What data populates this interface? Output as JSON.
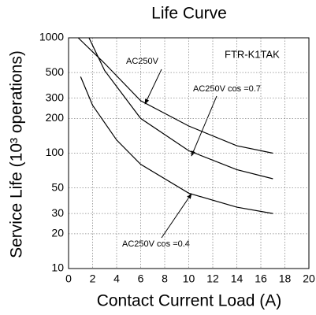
{
  "chart_data": {
    "type": "line",
    "title": "Life Curve",
    "xlabel": "Contact Current Load (A)",
    "ylabel": "Service Life (10³ operations)",
    "annotations": [
      "FTR-K1TAK"
    ],
    "series": [
      {
        "name": "AC250V",
        "color": "#000000",
        "x": [
          0.8,
          3,
          6,
          10,
          14,
          17
        ],
        "values": [
          1000,
          600,
          285,
          172,
          116,
          100
        ]
      },
      {
        "name": "AC250V cos =0.7",
        "color": "#000000",
        "x": [
          1.7,
          3,
          6,
          10,
          14,
          17
        ],
        "values": [
          1000,
          520,
          200,
          105,
          72,
          60
        ]
      },
      {
        "name": "AC250V cos =0.4",
        "color": "#000000",
        "x": [
          1,
          2,
          4,
          6,
          10,
          14,
          17
        ],
        "values": [
          460,
          260,
          130,
          80,
          45,
          34,
          30
        ]
      }
    ],
    "xlim": [
      0,
      20
    ],
    "xticks": [
      0,
      2,
      4,
      6,
      8,
      10,
      12,
      14,
      16,
      18,
      20
    ],
    "ylim": [
      10,
      1000
    ],
    "yticks": [
      10,
      20,
      30,
      50,
      100,
      200,
      300,
      500,
      1000
    ],
    "ylog": true,
    "grid": true
  }
}
